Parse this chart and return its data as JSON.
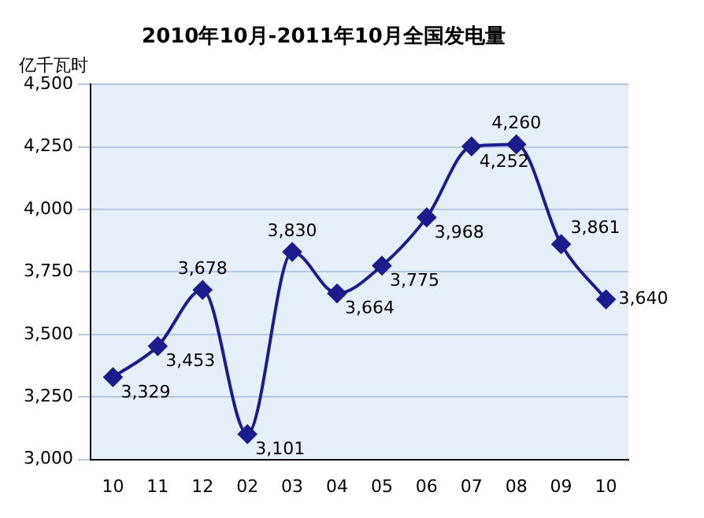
{
  "chart_data": {
    "type": "line",
    "title": "2010年10月-2011年10月全国发电量",
    "ylabel": "亿千瓦时",
    "categories": [
      "10",
      "11",
      "12",
      "02",
      "03",
      "04",
      "05",
      "06",
      "07",
      "08",
      "09",
      "10"
    ],
    "series": [
      {
        "color": "#1c1c8c",
        "values": [
          3329,
          3453,
          3678,
          3101,
          3830,
          3664,
          3775,
          3968,
          4252,
          4260,
          3861,
          3640
        ],
        "value_labels": [
          "3,329",
          "3,453",
          "3,678",
          "3,101",
          "3,830",
          "3,664",
          "3,775",
          "3,968",
          "4,252",
          "4,260",
          "3,861",
          "3,640"
        ]
      }
    ],
    "ylim": [
      3000,
      4500
    ],
    "yticks": [
      {
        "value": 3000,
        "label": "3,000"
      },
      {
        "value": 3250,
        "label": "3,250"
      },
      {
        "value": 3500,
        "label": "3,500"
      },
      {
        "value": 3750,
        "label": "3,750"
      },
      {
        "value": 4000,
        "label": "4,000"
      },
      {
        "value": 4250,
        "label": "4,250"
      },
      {
        "value": 4500,
        "label": "4,500"
      }
    ],
    "grid": "y",
    "marker": "diamond",
    "line_style": "solid",
    "legend": false
  }
}
